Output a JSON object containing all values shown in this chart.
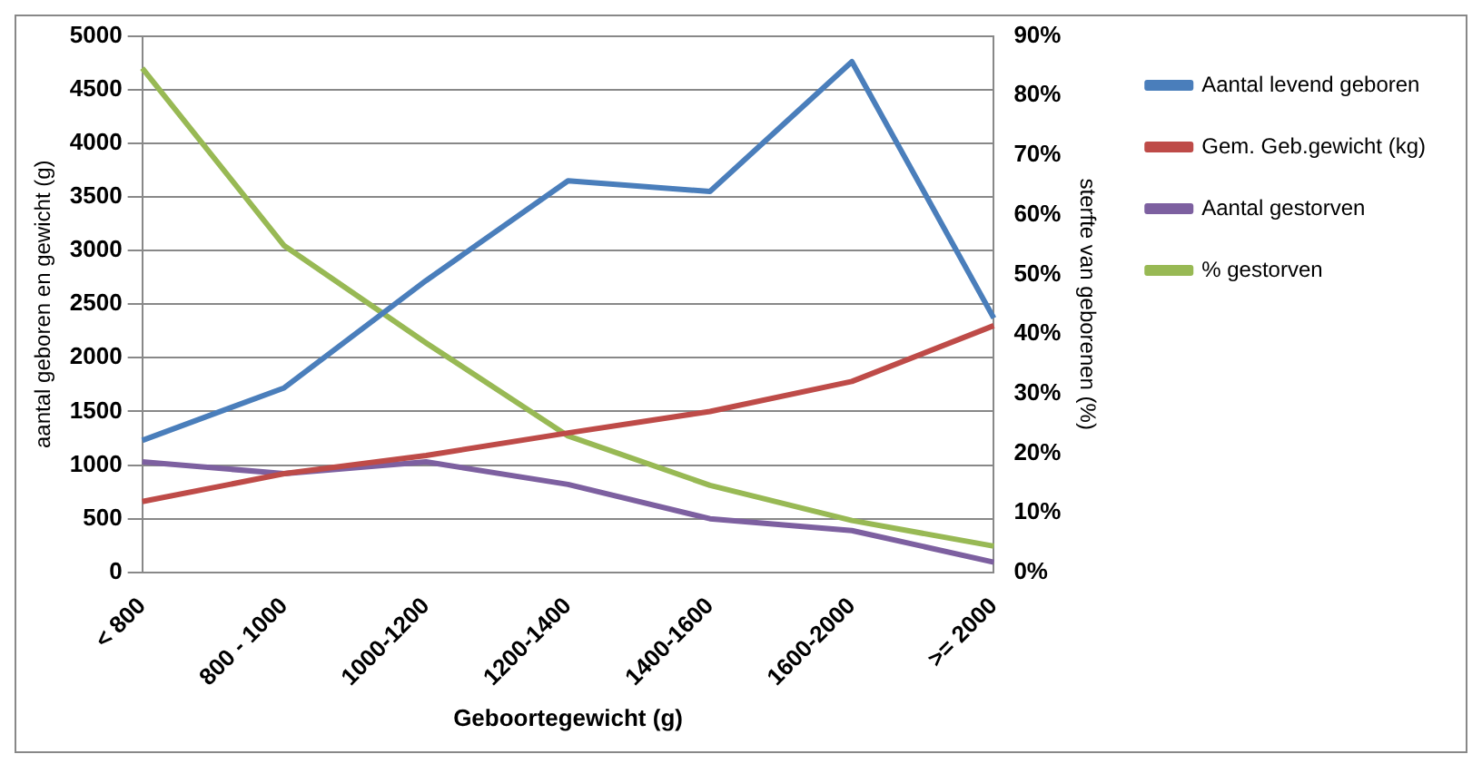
{
  "chart_data": {
    "type": "line",
    "xlabel": "Geboortegewicht (g)",
    "ylabel": "aantal geboren en gewicht (g)",
    "y2label": "sterfte van geborenen (%)",
    "categories": [
      "< 800",
      "800 - 1000",
      "1000-1200",
      "1200-1400",
      "1400-1600",
      "1600-2000",
      ">= 2000"
    ],
    "series": [
      {
        "name": "Aantal levend geboren",
        "color": "#4a7ebb",
        "values": [
          1230,
          1720,
          2720,
          3650,
          3550,
          4760,
          2370
        ]
      },
      {
        "name": "Gem. Geb.gewicht (kg)",
        "color": "#be4b48",
        "values": [
          660,
          920,
          1090,
          1300,
          1500,
          1780,
          2300
        ]
      },
      {
        "name": "Aantal gestorven",
        "color": "#7d60a0",
        "values": [
          1030,
          920,
          1030,
          820,
          500,
          390,
          95
        ]
      },
      {
        "name": "% gestorven",
        "color": "#98b954",
        "axis": "y2",
        "values": [
          84.6,
          54.8,
          38.5,
          22.9,
          14.6,
          8.7,
          4.4
        ]
      }
    ],
    "ylim": [
      0,
      5000
    ],
    "yticks": [
      0,
      500,
      1000,
      1500,
      2000,
      2500,
      3000,
      3500,
      4000,
      4500,
      5000
    ],
    "y2lim": [
      0,
      90
    ],
    "y2ticks": [
      {
        "value": 0,
        "label": "0%"
      },
      {
        "value": 10,
        "label": "10%"
      },
      {
        "value": 20,
        "label": "20%"
      },
      {
        "value": 30,
        "label": "30%"
      },
      {
        "value": 40,
        "label": "40%"
      },
      {
        "value": 50,
        "label": "50%"
      },
      {
        "value": 60,
        "label": "60%"
      },
      {
        "value": 70,
        "label": "70%"
      },
      {
        "value": 80,
        "label": "80%"
      },
      {
        "value": 90,
        "label": "90%"
      }
    ],
    "grid": "y",
    "legend": "right",
    "marker": "none",
    "line_style": "solid"
  }
}
